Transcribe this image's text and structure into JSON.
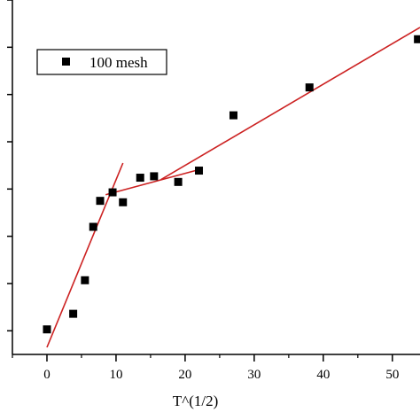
{
  "chart_data": {
    "type": "scatter",
    "xlabel": "T^(1/2)",
    "ylabel": "",
    "xlim": [
      -5,
      54
    ],
    "ylim": [
      0,
      75
    ],
    "x_ticks": [
      0,
      10,
      20,
      30,
      40,
      50
    ],
    "x_tick_labels": [
      "0",
      "10",
      "20",
      "30",
      "40",
      "50"
    ],
    "y_ticks": [
      5,
      15,
      25,
      35,
      45,
      55,
      65,
      75
    ],
    "grid": false,
    "legend": {
      "placement": "top-left",
      "entries": [
        "100 mesh"
      ]
    },
    "series": [
      {
        "name": "100 mesh",
        "marker": "square",
        "color": "#000000",
        "x": [
          0.0,
          3.8,
          5.5,
          6.7,
          7.7,
          9.5,
          11.0,
          13.5,
          15.5,
          19.0,
          22.0,
          27.0,
          38.0,
          53.7
        ],
        "y": [
          5.3,
          8.6,
          15.7,
          27.0,
          32.5,
          34.3,
          32.2,
          37.4,
          37.7,
          36.5,
          38.9,
          50.6,
          56.5,
          66.7
        ]
      }
    ],
    "fit_lines": [
      {
        "x": [
          0.0,
          11.0
        ],
        "y": [
          1.5,
          40.5
        ],
        "color": "#cc2222"
      },
      {
        "x": [
          8.5,
          21.5
        ],
        "y": [
          33.8,
          38.9
        ],
        "color": "#cc2222"
      },
      {
        "x": [
          16.5,
          54.0
        ],
        "y": [
          37.0,
          69.2
        ],
        "color": "#cc2222"
      }
    ]
  }
}
